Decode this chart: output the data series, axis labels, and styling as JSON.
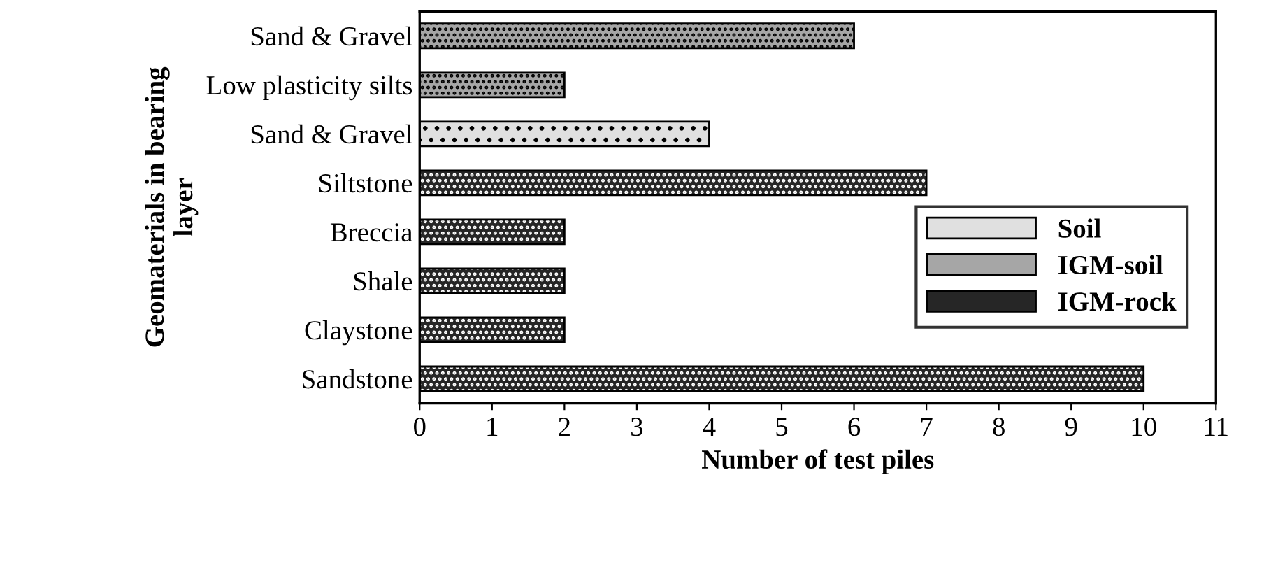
{
  "chart_data": {
    "type": "bar",
    "orientation": "horizontal",
    "xlabel": "Number of test piles",
    "ylabel": "Geomaterials in bearing\nlayer",
    "categories": [
      "Sand & Gravel",
      "Low plasticity silts",
      "Sand & Gravel",
      "Siltstone",
      "Breccia",
      "Shale",
      "Claystone",
      "Sandstone"
    ],
    "series": [
      {
        "name": "Soil",
        "color": "#e0e0e0",
        "values": [
          null,
          null,
          4,
          null,
          null,
          null,
          null,
          null
        ]
      },
      {
        "name": "IGM-soil",
        "color": "#a6a6a6",
        "values": [
          6,
          2,
          null,
          null,
          null,
          null,
          null,
          null
        ]
      },
      {
        "name": "IGM-rock",
        "color": "#262626",
        "values": [
          null,
          null,
          null,
          7,
          2,
          2,
          2,
          10
        ]
      }
    ],
    "xlim": [
      0,
      11
    ],
    "xticks": [
      0,
      1,
      2,
      3,
      4,
      5,
      6,
      7,
      8,
      9,
      10,
      11
    ],
    "grid": false,
    "legend": "bottom right"
  }
}
